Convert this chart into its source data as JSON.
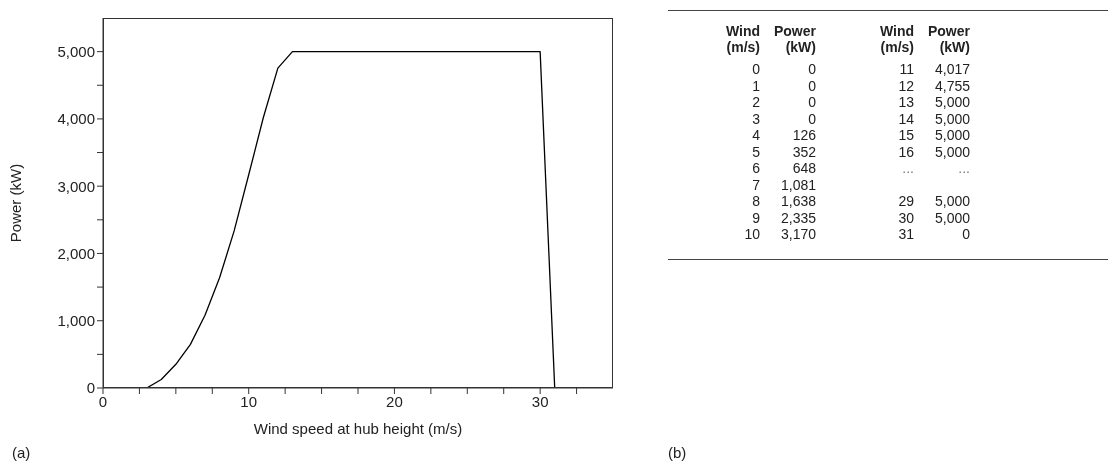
{
  "chart_data": {
    "type": "line",
    "xlabel": "Wind speed at hub height (m/s)",
    "ylabel": "Power (kW)",
    "x": [
      0,
      1,
      2,
      3,
      4,
      5,
      6,
      7,
      8,
      9,
      10,
      11,
      12,
      13,
      14,
      15,
      16,
      29,
      30,
      31
    ],
    "values": [
      0,
      0,
      0,
      0,
      126,
      352,
      648,
      1081,
      1638,
      2335,
      3170,
      4017,
      4755,
      5000,
      5000,
      5000,
      5000,
      5000,
      5000,
      0
    ],
    "color": "#000000",
    "marker": "none",
    "line_style": "solid",
    "grid": false,
    "legend": false,
    "xlim": [
      0,
      35
    ],
    "xticks": [
      0,
      {
        "value": 2.5,
        "label": null
      },
      {
        "value": 5,
        "label": null
      },
      {
        "value": 7.5,
        "label": null
      },
      10,
      {
        "value": 12.5,
        "label": null
      },
      {
        "value": 15,
        "label": null
      },
      {
        "value": 17.5,
        "label": null
      },
      20,
      {
        "value": 22.5,
        "label": null
      },
      {
        "value": 25,
        "label": null
      },
      {
        "value": 27.5,
        "label": null
      },
      30,
      {
        "value": 32.5,
        "label": null
      }
    ],
    "ylim": [
      0,
      5500
    ],
    "yticks": [
      0,
      {
        "value": 500,
        "label": null
      },
      {
        "value": 1000,
        "label": "1,000"
      },
      {
        "value": 1500,
        "label": null
      },
      {
        "value": 2000,
        "label": "2,000"
      },
      {
        "value": 2500,
        "label": null
      },
      {
        "value": 3000,
        "label": "3,000"
      },
      {
        "value": 3500,
        "label": null
      },
      {
        "value": 4000,
        "label": "4,000"
      },
      {
        "value": 4500,
        "label": null
      },
      {
        "value": 5000,
        "label": "5,000"
      }
    ],
    "annotations": [
      "(a)",
      "(b)",
      "Wind (m/s)",
      "Power (kW)",
      "...",
      "0",
      "1",
      "2",
      "3",
      "4",
      "5",
      "6",
      "7",
      "8",
      "9",
      "10",
      "11",
      "12",
      "13",
      "14",
      "15",
      "16",
      "29",
      "30",
      "31",
      "0",
      "0",
      "0",
      "0",
      "126",
      "352",
      "648",
      "1,081",
      "1,638",
      "2,335",
      "3,170",
      "4,017",
      "4,755",
      "5,000",
      "5,000",
      "5,000",
      "5,000",
      "5,000",
      "5,000",
      "0"
    ]
  }
}
